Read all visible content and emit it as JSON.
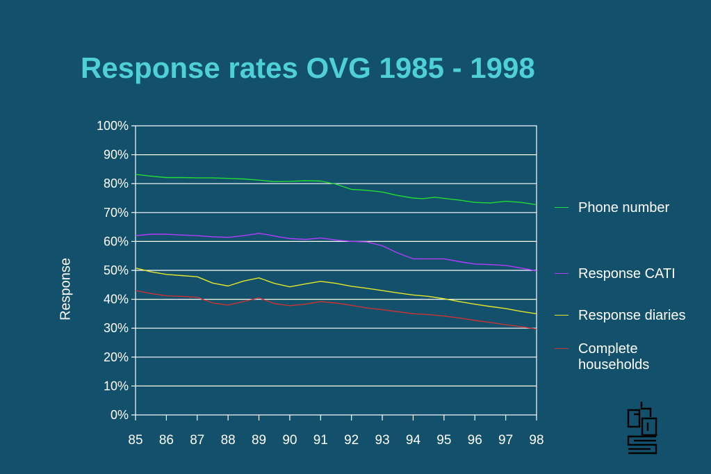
{
  "chart_data": {
    "type": "line",
    "title": "Response rates OVG 1985 - 1998",
    "ylabel": "Response",
    "xlabel": "",
    "categories": [
      "85",
      "86",
      "87",
      "88",
      "89",
      "90",
      "91",
      "92",
      "93",
      "94",
      "95",
      "96",
      "97",
      "98"
    ],
    "ylim": [
      0,
      100
    ],
    "y_ticks": [
      "0%",
      "10%",
      "20%",
      "30%",
      "40%",
      "50%",
      "60%",
      "70%",
      "80%",
      "90%",
      "100%"
    ],
    "grid": true,
    "legend_position": "right",
    "series": [
      {
        "name": "Phone number",
        "color": "#22dd33",
        "x": [
          85,
          85.5,
          86,
          86.5,
          87,
          87.5,
          88,
          88.5,
          89,
          89.5,
          90,
          90.5,
          91,
          91.5,
          92,
          92.5,
          93,
          93.5,
          94,
          94.3,
          94.7,
          95,
          95.5,
          96,
          96.5,
          97,
          97.5,
          98
        ],
        "values": [
          83.2,
          82.6,
          82.1,
          82.1,
          82.0,
          82.0,
          81.8,
          81.6,
          81.2,
          80.7,
          80.8,
          81.0,
          80.9,
          79.8,
          78.0,
          77.7,
          77.1,
          75.9,
          75.0,
          74.8,
          75.3,
          74.9,
          74.3,
          73.5,
          73.3,
          73.9,
          73.5,
          72.7
        ]
      },
      {
        "name": "Response CATI",
        "color": "#b43cff",
        "x": [
          85,
          85.5,
          86,
          86.5,
          87,
          87.5,
          88,
          88.5,
          89,
          89.3,
          89.7,
          90,
          90.5,
          91,
          91.5,
          92,
          92.5,
          93,
          93.5,
          94,
          94.5,
          95,
          95.5,
          96,
          96.5,
          97,
          97.5,
          98
        ],
        "values": [
          62.0,
          62.5,
          62.5,
          62.2,
          62.0,
          61.6,
          61.4,
          62.0,
          62.8,
          62.3,
          61.5,
          61.0,
          60.7,
          61.2,
          60.5,
          60.0,
          59.8,
          58.5,
          56.0,
          54.0,
          54.0,
          54.0,
          53.0,
          52.2,
          52.0,
          51.7,
          50.8,
          49.8
        ]
      },
      {
        "name": "Response diaries",
        "color": "#e6e62a",
        "x": [
          85,
          85.5,
          86,
          86.5,
          87,
          87.5,
          88,
          88.5,
          89,
          89.5,
          90,
          90.5,
          91,
          91.5,
          92,
          92.5,
          93,
          93.5,
          94,
          94.5,
          95,
          95.5,
          96,
          96.5,
          97,
          97.5,
          98
        ],
        "values": [
          50.8,
          49.5,
          48.6,
          48.2,
          47.8,
          45.6,
          44.6,
          46.3,
          47.4,
          45.5,
          44.3,
          45.3,
          46.2,
          45.5,
          44.5,
          43.8,
          43.0,
          42.2,
          41.5,
          41.0,
          40.2,
          39.2,
          38.3,
          37.5,
          36.8,
          35.8,
          35.0
        ]
      },
      {
        "name": "Complete households",
        "color": "#cc3333",
        "x": [
          85,
          85.5,
          86,
          86.5,
          87,
          87.5,
          88,
          88.5,
          89,
          89.5,
          90,
          90.5,
          91,
          91.5,
          92,
          92.5,
          93,
          93.5,
          94,
          94.5,
          95,
          95.5,
          96,
          96.5,
          97,
          97.5,
          98
        ],
        "values": [
          43.0,
          42.0,
          41.2,
          41.0,
          40.7,
          38.7,
          38.0,
          39.2,
          40.5,
          38.5,
          37.8,
          38.3,
          39.2,
          38.7,
          37.9,
          37.0,
          36.4,
          35.7,
          35.0,
          34.7,
          34.2,
          33.5,
          32.7,
          32.0,
          31.2,
          30.5,
          29.7
        ]
      }
    ]
  },
  "legend_labels": [
    "Phone number",
    "Response CATI",
    "Response diaries",
    "Complete households"
  ],
  "logo": {
    "name": "cbs",
    "color": "#000000"
  }
}
